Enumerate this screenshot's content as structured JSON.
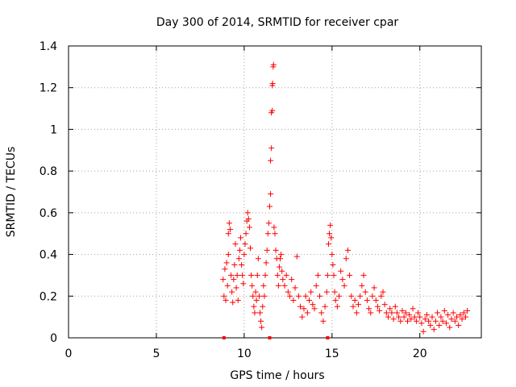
{
  "chart_data": {
    "type": "scatter",
    "title": "Day 300 of 2014, SRMTID for receiver cpar",
    "xlabel": "GPS time / hours",
    "ylabel": "SRMTID / TECUs",
    "xlim": [
      0,
      23.5
    ],
    "ylim": [
      0,
      1.4
    ],
    "xticks": [
      0,
      5,
      10,
      15,
      20
    ],
    "xtick_labels": [
      "0",
      "5",
      "10",
      "15",
      "20"
    ],
    "yticks": [
      0,
      0.2,
      0.4,
      0.6,
      0.8,
      1.0,
      1.2,
      1.4
    ],
    "ytick_labels": [
      "0",
      "0.2",
      "0.4",
      "0.6",
      "0.8",
      "1",
      "1.2",
      "1.4"
    ],
    "grid": true,
    "marker": "+",
    "color": "#ff0000",
    "series": [
      {
        "name": "SRMTID",
        "points": [
          [
            8.8,
            0.28
          ],
          [
            8.85,
            0.2
          ],
          [
            8.9,
            0.33
          ],
          [
            8.95,
            0.18
          ],
          [
            9.0,
            0.36
          ],
          [
            9.05,
            0.25
          ],
          [
            9.1,
            0.4
          ],
          [
            9.1,
            0.5
          ],
          [
            9.15,
            0.55
          ],
          [
            9.2,
            0.52
          ],
          [
            9.25,
            0.3
          ],
          [
            9.3,
            0.22
          ],
          [
            9.35,
            0.17
          ],
          [
            9.4,
            0.28
          ],
          [
            9.45,
            0.35
          ],
          [
            9.5,
            0.45
          ],
          [
            9.55,
            0.24
          ],
          [
            9.6,
            0.3
          ],
          [
            9.65,
            0.18
          ],
          [
            9.7,
            0.38
          ],
          [
            9.75,
            0.42
          ],
          [
            9.8,
            0.48
          ],
          [
            9.85,
            0.35
          ],
          [
            9.9,
            0.3
          ],
          [
            9.95,
            0.26
          ],
          [
            10.0,
            0.4
          ],
          [
            10.05,
            0.45
          ],
          [
            10.1,
            0.5
          ],
          [
            10.15,
            0.56
          ],
          [
            10.2,
            0.6
          ],
          [
            10.25,
            0.57
          ],
          [
            10.3,
            0.53
          ],
          [
            10.35,
            0.43
          ],
          [
            10.4,
            0.3
          ],
          [
            10.45,
            0.25
          ],
          [
            10.5,
            0.2
          ],
          [
            10.55,
            0.15
          ],
          [
            10.6,
            0.12
          ],
          [
            10.65,
            0.22
          ],
          [
            10.7,
            0.18
          ],
          [
            10.75,
            0.3
          ],
          [
            10.8,
            0.38
          ],
          [
            10.85,
            0.2
          ],
          [
            10.9,
            0.12
          ],
          [
            10.95,
            0.08
          ],
          [
            11.0,
            0.05
          ],
          [
            11.05,
            0.15
          ],
          [
            11.1,
            0.25
          ],
          [
            11.15,
            0.2
          ],
          [
            11.2,
            0.3
          ],
          [
            11.25,
            0.36
          ],
          [
            11.3,
            0.42
          ],
          [
            11.35,
            0.5
          ],
          [
            11.4,
            0.55
          ],
          [
            11.45,
            0.63
          ],
          [
            11.5,
            0.69
          ],
          [
            11.5,
            0.85
          ],
          [
            11.55,
            0.91
          ],
          [
            11.55,
            1.08
          ],
          [
            11.6,
            1.09
          ],
          [
            11.6,
            1.21
          ],
          [
            11.62,
            1.22
          ],
          [
            11.65,
            1.3
          ],
          [
            11.67,
            1.31
          ],
          [
            11.7,
            0.53
          ],
          [
            11.75,
            0.5
          ],
          [
            11.8,
            0.42
          ],
          [
            11.85,
            0.38
          ],
          [
            11.9,
            0.3
          ],
          [
            11.95,
            0.25
          ],
          [
            12.0,
            0.34
          ],
          [
            12.05,
            0.38
          ],
          [
            12.1,
            0.4
          ],
          [
            12.15,
            0.32
          ],
          [
            12.2,
            0.28
          ],
          [
            12.3,
            0.25
          ],
          [
            12.4,
            0.3
          ],
          [
            12.5,
            0.22
          ],
          [
            12.6,
            0.2
          ],
          [
            12.7,
            0.28
          ],
          [
            12.8,
            0.18
          ],
          [
            12.9,
            0.24
          ],
          [
            13.0,
            0.39
          ],
          [
            13.1,
            0.2
          ],
          [
            13.2,
            0.15
          ],
          [
            13.3,
            0.1
          ],
          [
            13.4,
            0.14
          ],
          [
            13.5,
            0.2
          ],
          [
            13.6,
            0.12
          ],
          [
            13.7,
            0.18
          ],
          [
            13.8,
            0.22
          ],
          [
            13.9,
            0.16
          ],
          [
            14.0,
            0.14
          ],
          [
            14.1,
            0.25
          ],
          [
            14.2,
            0.3
          ],
          [
            14.3,
            0.2
          ],
          [
            14.4,
            0.12
          ],
          [
            14.5,
            0.08
          ],
          [
            14.6,
            0.15
          ],
          [
            14.7,
            0.22
          ],
          [
            14.75,
            0.3
          ],
          [
            14.8,
            0.45
          ],
          [
            14.85,
            0.5
          ],
          [
            14.9,
            0.54
          ],
          [
            14.95,
            0.48
          ],
          [
            15.0,
            0.4
          ],
          [
            15.05,
            0.35
          ],
          [
            15.1,
            0.3
          ],
          [
            15.15,
            0.22
          ],
          [
            15.2,
            0.18
          ],
          [
            15.3,
            0.15
          ],
          [
            15.4,
            0.2
          ],
          [
            15.5,
            0.32
          ],
          [
            15.6,
            0.28
          ],
          [
            15.7,
            0.25
          ],
          [
            15.8,
            0.38
          ],
          [
            15.9,
            0.42
          ],
          [
            16.0,
            0.3
          ],
          [
            16.1,
            0.2
          ],
          [
            16.2,
            0.15
          ],
          [
            16.3,
            0.18
          ],
          [
            16.4,
            0.12
          ],
          [
            16.5,
            0.16
          ],
          [
            16.6,
            0.2
          ],
          [
            16.7,
            0.25
          ],
          [
            16.8,
            0.3
          ],
          [
            16.9,
            0.22
          ],
          [
            17.0,
            0.18
          ],
          [
            17.1,
            0.14
          ],
          [
            17.2,
            0.12
          ],
          [
            17.3,
            0.2
          ],
          [
            17.4,
            0.24
          ],
          [
            17.5,
            0.18
          ],
          [
            17.6,
            0.15
          ],
          [
            17.7,
            0.13
          ],
          [
            17.8,
            0.2
          ],
          [
            17.9,
            0.22
          ],
          [
            18.0,
            0.16
          ],
          [
            18.1,
            0.12
          ],
          [
            18.2,
            0.1
          ],
          [
            18.3,
            0.14
          ],
          [
            18.4,
            0.12
          ],
          [
            18.5,
            0.09
          ],
          [
            18.6,
            0.15
          ],
          [
            18.7,
            0.12
          ],
          [
            18.8,
            0.1
          ],
          [
            18.9,
            0.08
          ],
          [
            19.0,
            0.13
          ],
          [
            19.1,
            0.1
          ],
          [
            19.2,
            0.12
          ],
          [
            19.3,
            0.08
          ],
          [
            19.4,
            0.11
          ],
          [
            19.5,
            0.09
          ],
          [
            19.6,
            0.14
          ],
          [
            19.7,
            0.1
          ],
          [
            19.8,
            0.08
          ],
          [
            19.9,
            0.12
          ],
          [
            20.0,
            0.1
          ],
          [
            20.1,
            0.07
          ],
          [
            20.2,
            0.03
          ],
          [
            20.3,
            0.09
          ],
          [
            20.4,
            0.11
          ],
          [
            20.5,
            0.08
          ],
          [
            20.6,
            0.06
          ],
          [
            20.7,
            0.1
          ],
          [
            20.8,
            0.04
          ],
          [
            20.9,
            0.08
          ],
          [
            21.0,
            0.12
          ],
          [
            21.1,
            0.06
          ],
          [
            21.2,
            0.1
          ],
          [
            21.3,
            0.08
          ],
          [
            21.4,
            0.13
          ],
          [
            21.5,
            0.07
          ],
          [
            21.6,
            0.11
          ],
          [
            21.7,
            0.05
          ],
          [
            21.8,
            0.09
          ],
          [
            21.9,
            0.12
          ],
          [
            22.0,
            0.08
          ],
          [
            22.1,
            0.1
          ],
          [
            22.2,
            0.06
          ],
          [
            22.3,
            0.11
          ],
          [
            22.4,
            0.09
          ],
          [
            22.5,
            0.12
          ],
          [
            22.6,
            0.1
          ],
          [
            22.7,
            0.13
          ]
        ]
      }
    ],
    "zero_markers_x": [
      8.85,
      11.45,
      14.75
    ]
  }
}
